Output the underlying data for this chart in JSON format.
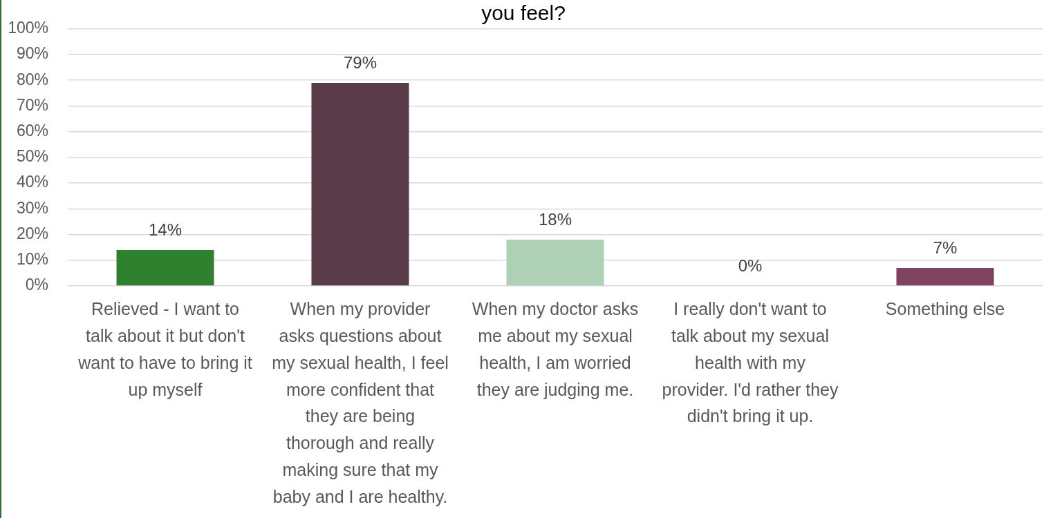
{
  "chart_data": {
    "type": "bar",
    "title": "you feel?",
    "categories": [
      "Relieved - I want to talk about it but don't want to have to bring it up myself",
      "When my provider asks questions about my sexual health, I feel more confident that they are being thorough and really making sure that my baby and I are healthy.",
      "When my doctor asks me about my sexual health, I am worried they are judging me.",
      "I really don't want to talk about my sexual health with my provider. I'd rather they didn't bring it up.",
      "Something else"
    ],
    "values": [
      14,
      79,
      18,
      0,
      7
    ],
    "value_labels": [
      "14%",
      "79%",
      "18%",
      "0%",
      "7%"
    ],
    "colors": [
      "#2f802f",
      "#5a3b4a",
      "#aed0b5",
      "#8a6a7a",
      "#80435f"
    ],
    "ylim": [
      0,
      100
    ],
    "yticks": [
      {
        "value": 0,
        "label": "0%"
      },
      {
        "value": 10,
        "label": "10%"
      },
      {
        "value": 20,
        "label": "20%"
      },
      {
        "value": 30,
        "label": "30%"
      },
      {
        "value": 40,
        "label": "40%"
      },
      {
        "value": 50,
        "label": "50%"
      },
      {
        "value": 60,
        "label": "60%"
      },
      {
        "value": 70,
        "label": "70%"
      },
      {
        "value": 80,
        "label": "80%"
      },
      {
        "value": 90,
        "label": "90%"
      },
      {
        "value": 100,
        "label": "100%"
      }
    ],
    "grid": "y"
  }
}
